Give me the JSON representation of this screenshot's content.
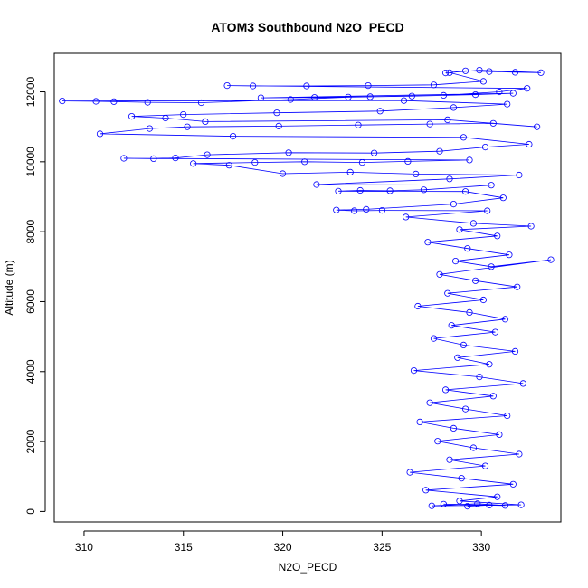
{
  "chart_data": {
    "type": "scatter",
    "title": "ATOM3 Southbound N2O_PECD",
    "xlabel": "N2O_PECD",
    "ylabel": "Altitude (m)",
    "xlim": [
      308.5,
      334.0
    ],
    "ylim": [
      -300,
      13100
    ],
    "xticks": [
      310,
      315,
      320,
      325,
      330
    ],
    "yticks": [
      0,
      2000,
      4000,
      6000,
      8000,
      10000,
      12000
    ],
    "grid": false,
    "legend": "none",
    "series": [
      {
        "color": "#0000ff",
        "marker": "open-circle",
        "connected": true,
        "points": [
          [
            329.3,
            150
          ],
          [
            330.4,
            180
          ],
          [
            328.1,
            210
          ],
          [
            331.2,
            170
          ],
          [
            329.8,
            220
          ],
          [
            327.5,
            160
          ],
          [
            332.0,
            190
          ],
          [
            328.9,
            300
          ],
          [
            330.8,
            420
          ],
          [
            327.2,
            610
          ],
          [
            331.6,
            780
          ],
          [
            329.0,
            950
          ],
          [
            326.4,
            1120
          ],
          [
            330.2,
            1300
          ],
          [
            328.4,
            1480
          ],
          [
            331.9,
            1640
          ],
          [
            329.6,
            1820
          ],
          [
            327.8,
            2010
          ],
          [
            330.9,
            2200
          ],
          [
            328.6,
            2380
          ],
          [
            326.9,
            2560
          ],
          [
            331.3,
            2740
          ],
          [
            329.2,
            2930
          ],
          [
            327.4,
            3110
          ],
          [
            330.6,
            3300
          ],
          [
            328.2,
            3480
          ],
          [
            332.1,
            3660
          ],
          [
            329.9,
            3850
          ],
          [
            326.6,
            4030
          ],
          [
            330.4,
            4210
          ],
          [
            328.8,
            4400
          ],
          [
            331.7,
            4580
          ],
          [
            329.1,
            4760
          ],
          [
            327.6,
            4950
          ],
          [
            330.7,
            5130
          ],
          [
            328.5,
            5320
          ],
          [
            331.2,
            5500
          ],
          [
            329.4,
            5690
          ],
          [
            326.8,
            5870
          ],
          [
            330.1,
            6050
          ],
          [
            328.3,
            6240
          ],
          [
            331.8,
            6420
          ],
          [
            329.7,
            6600
          ],
          [
            327.9,
            6780
          ],
          [
            333.5,
            7200
          ],
          [
            330.5,
            7000
          ],
          [
            328.7,
            7160
          ],
          [
            331.4,
            7340
          ],
          [
            329.3,
            7520
          ],
          [
            327.3,
            7700
          ],
          [
            330.8,
            7880
          ],
          [
            328.9,
            8060
          ],
          [
            332.5,
            8160
          ],
          [
            329.6,
            8240
          ],
          [
            326.2,
            8420
          ],
          [
            330.3,
            8600
          ],
          [
            325.0,
            8610
          ],
          [
            323.6,
            8600
          ],
          [
            322.7,
            8620
          ],
          [
            324.2,
            8640
          ],
          [
            328.6,
            8790
          ],
          [
            331.1,
            8970
          ],
          [
            329.2,
            9150
          ],
          [
            322.8,
            9160
          ],
          [
            323.9,
            9180
          ],
          [
            325.4,
            9170
          ],
          [
            327.1,
            9200
          ],
          [
            330.5,
            9330
          ],
          [
            321.7,
            9350
          ],
          [
            328.4,
            9510
          ],
          [
            331.9,
            9620
          ],
          [
            326.7,
            9650
          ],
          [
            323.4,
            9700
          ],
          [
            320.0,
            9660
          ],
          [
            317.3,
            9900
          ],
          [
            315.5,
            9950
          ],
          [
            318.6,
            9980
          ],
          [
            321.1,
            10000
          ],
          [
            324.0,
            9980
          ],
          [
            326.3,
            10010
          ],
          [
            329.4,
            10050
          ],
          [
            312.0,
            10100
          ],
          [
            313.5,
            10090
          ],
          [
            314.6,
            10110
          ],
          [
            316.2,
            10200
          ],
          [
            320.3,
            10260
          ],
          [
            324.6,
            10250
          ],
          [
            327.9,
            10300
          ],
          [
            330.2,
            10420
          ],
          [
            332.4,
            10500
          ],
          [
            329.1,
            10700
          ],
          [
            317.5,
            10730
          ],
          [
            310.8,
            10800
          ],
          [
            313.3,
            10950
          ],
          [
            315.2,
            11000
          ],
          [
            319.8,
            11020
          ],
          [
            323.8,
            11050
          ],
          [
            327.4,
            11080
          ],
          [
            330.6,
            11100
          ],
          [
            332.8,
            11000
          ],
          [
            328.3,
            11200
          ],
          [
            316.1,
            11150
          ],
          [
            314.1,
            11250
          ],
          [
            312.4,
            11300
          ],
          [
            315.0,
            11350
          ],
          [
            319.7,
            11400
          ],
          [
            324.9,
            11450
          ],
          [
            328.6,
            11550
          ],
          [
            331.3,
            11650
          ],
          [
            326.1,
            11750
          ],
          [
            308.9,
            11740
          ],
          [
            310.6,
            11730
          ],
          [
            311.5,
            11720
          ],
          [
            313.2,
            11700
          ],
          [
            315.9,
            11690
          ],
          [
            320.4,
            11780
          ],
          [
            323.3,
            11850
          ],
          [
            326.5,
            11880
          ],
          [
            329.7,
            11920
          ],
          [
            331.6,
            11960
          ],
          [
            318.9,
            11830
          ],
          [
            321.6,
            11840
          ],
          [
            324.4,
            11860
          ],
          [
            328.1,
            11900
          ],
          [
            330.9,
            12000
          ],
          [
            332.3,
            12100
          ],
          [
            317.2,
            12180
          ],
          [
            318.5,
            12170
          ],
          [
            321.2,
            12170
          ],
          [
            324.3,
            12180
          ],
          [
            327.6,
            12200
          ],
          [
            330.1,
            12300
          ],
          [
            328.4,
            12550
          ],
          [
            329.2,
            12600
          ],
          [
            330.4,
            12580
          ],
          [
            331.7,
            12560
          ],
          [
            333.0,
            12550
          ],
          [
            329.9,
            12620
          ],
          [
            328.2,
            12540
          ]
        ]
      }
    ]
  }
}
